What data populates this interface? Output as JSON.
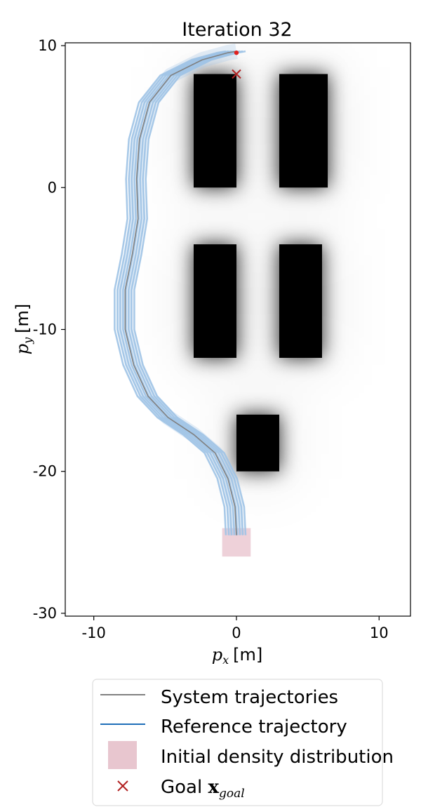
{
  "chart_data": {
    "type": "line",
    "title": "Iteration 32",
    "xlabel": {
      "var": "p",
      "sub": "x",
      "unit": "[m]"
    },
    "ylabel": {
      "var": "p",
      "sub": "y",
      "unit": "[m]"
    },
    "xlim": [
      -12,
      12.2
    ],
    "ylim": [
      -30.2,
      10.2
    ],
    "xticks": [
      -10,
      0,
      10
    ],
    "xtick_labels": [
      "-10",
      "0",
      "10"
    ],
    "yticks": [
      10,
      0,
      -10,
      -20,
      -30
    ],
    "ytick_labels": [
      "10",
      "0",
      "-10",
      "-20",
      "-30"
    ],
    "grid": false,
    "legend_position": "below",
    "obstacles": [
      {
        "x": [
          -3,
          0
        ],
        "y": [
          0,
          8
        ]
      },
      {
        "x": [
          3,
          6.4
        ],
        "y": [
          0,
          8
        ]
      },
      {
        "x": [
          -3,
          0
        ],
        "y": [
          -12,
          -4
        ]
      },
      {
        "x": [
          3,
          6
        ],
        "y": [
          -12,
          -4
        ]
      },
      {
        "x": [
          0,
          3
        ],
        "y": [
          -20,
          -16
        ]
      }
    ],
    "series": [
      {
        "name": "Reference trajectory",
        "role": "reference",
        "color": "#9fc3e6",
        "points": [
          [
            0.0,
            -24.5
          ],
          [
            -0.1,
            -22.5
          ],
          [
            -0.6,
            -20.5
          ],
          [
            -1.5,
            -18.7
          ],
          [
            -3.0,
            -17.4
          ],
          [
            -4.8,
            -16.2
          ],
          [
            -6.2,
            -14.7
          ],
          [
            -7.2,
            -12.5
          ],
          [
            -7.8,
            -10.0
          ],
          [
            -7.8,
            -7.2
          ],
          [
            -7.3,
            -4.7
          ],
          [
            -6.9,
            -2.2
          ],
          [
            -7.0,
            0.6
          ],
          [
            -6.8,
            3.4
          ],
          [
            -6.1,
            6.0
          ],
          [
            -4.6,
            7.9
          ],
          [
            -2.4,
            9.0
          ],
          [
            -0.6,
            9.5
          ],
          [
            0.0,
            9.6
          ]
        ]
      },
      {
        "name": "System trajectories",
        "role": "system",
        "color": "#808080",
        "points": [
          [
            0.0,
            -24.5
          ],
          [
            -0.1,
            -22.5
          ],
          [
            -0.6,
            -20.5
          ],
          [
            -1.5,
            -18.7
          ],
          [
            -3.0,
            -17.4
          ],
          [
            -4.8,
            -16.2
          ],
          [
            -6.2,
            -14.7
          ],
          [
            -7.2,
            -12.5
          ],
          [
            -7.8,
            -10.0
          ],
          [
            -7.8,
            -7.2
          ],
          [
            -7.3,
            -4.7
          ],
          [
            -6.9,
            -2.2
          ],
          [
            -7.0,
            0.6
          ],
          [
            -6.8,
            3.4
          ],
          [
            -6.1,
            6.0
          ],
          [
            -4.6,
            7.9
          ],
          [
            -2.4,
            9.0
          ],
          [
            -0.6,
            9.5
          ],
          [
            0.0,
            9.6
          ]
        ]
      }
    ],
    "initial_density": {
      "x": [
        -1,
        1
      ],
      "y": [
        -26,
        -24
      ],
      "color": "#d99aaa"
    },
    "goal": {
      "x": 0,
      "y": 8,
      "marker": "x",
      "color": "#b22222"
    },
    "end_marker": {
      "x": 0,
      "y": 9.5,
      "color": "#e0201e"
    },
    "legend": [
      {
        "label": "System trajectories",
        "symbol": "line",
        "color": "#808080"
      },
      {
        "label": "Reference trajectory",
        "symbol": "line",
        "color": "#1f6eb8"
      },
      {
        "label": "Initial density distribution",
        "symbol": "patch",
        "color": "#e8c6cf"
      },
      {
        "label": "Goal ",
        "math": "x",
        "math_sub": "goal",
        "symbol": "x",
        "color": "#b22222"
      }
    ]
  }
}
